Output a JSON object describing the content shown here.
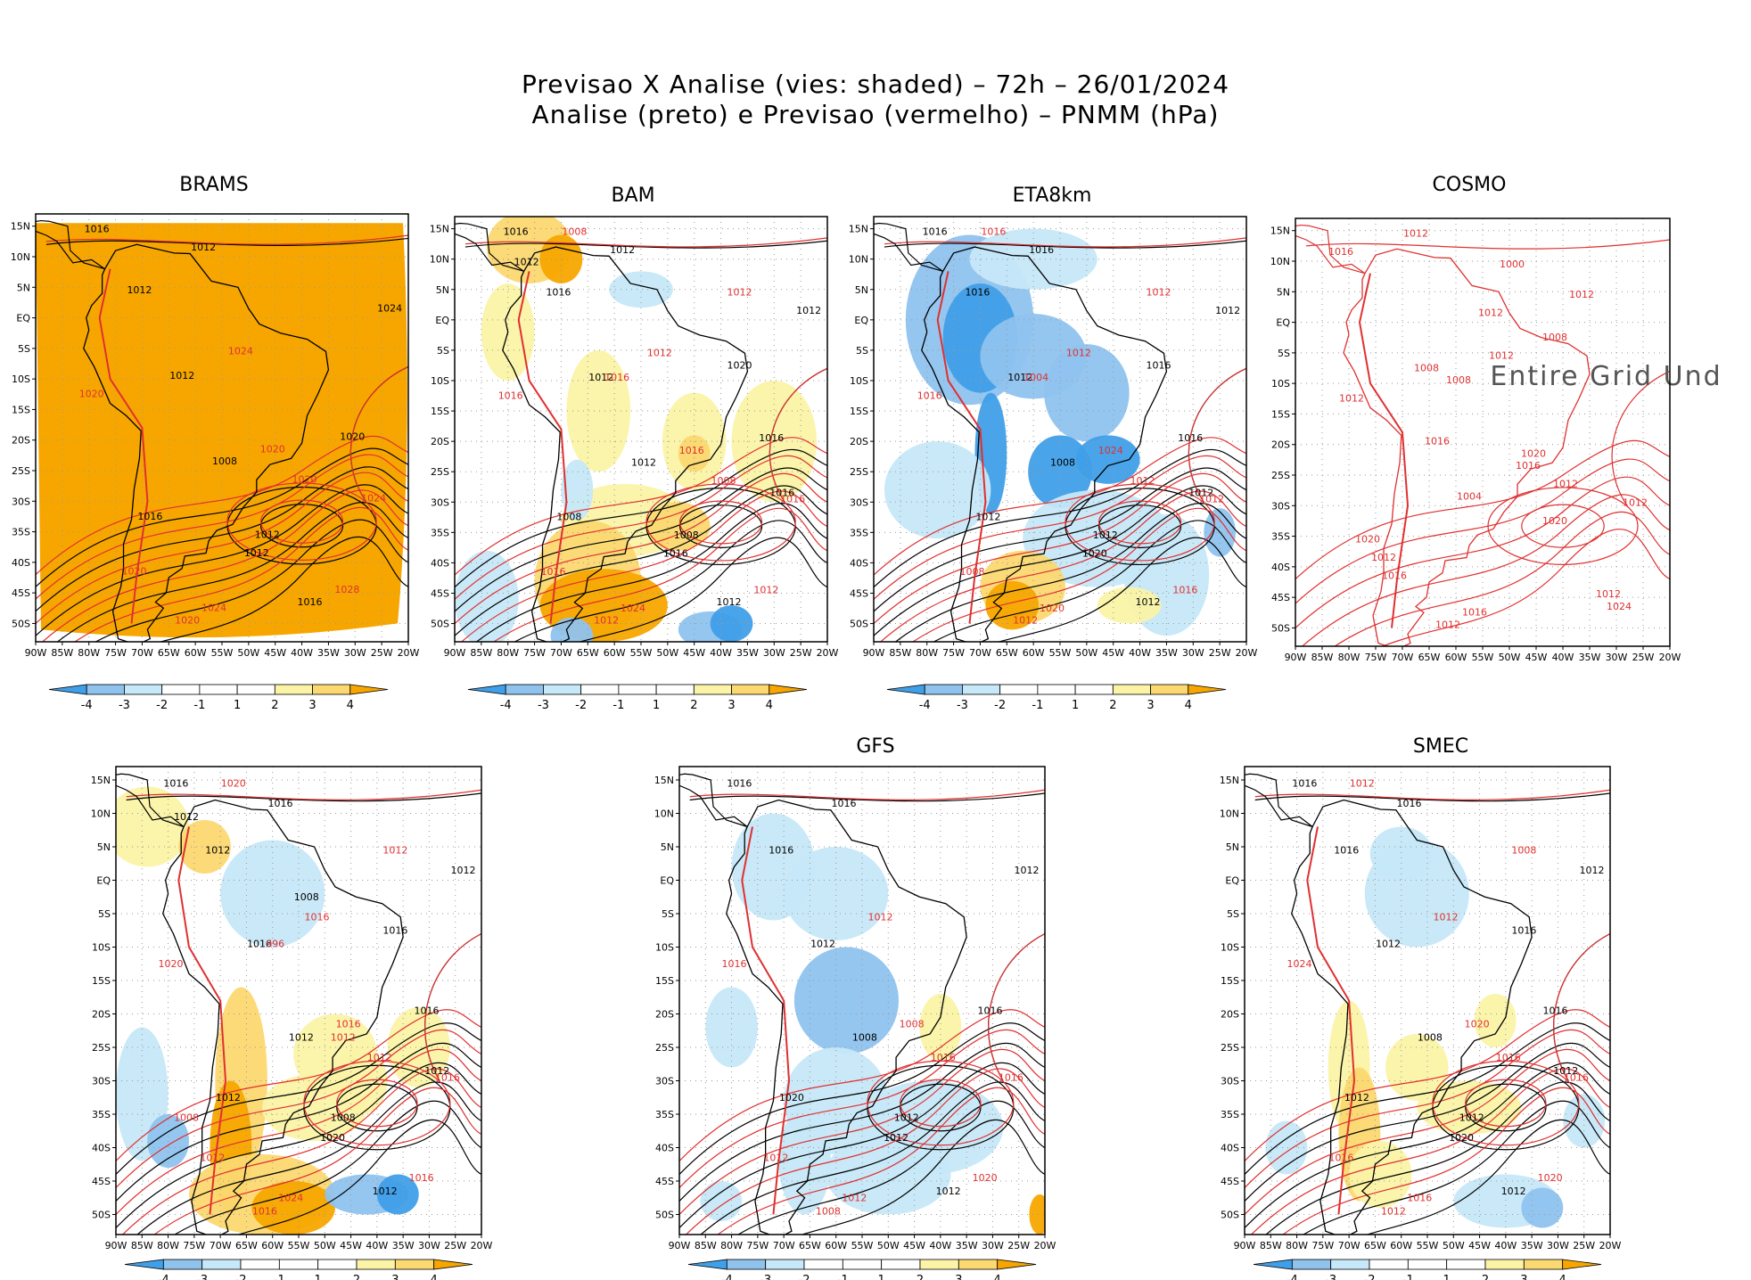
{
  "title_line1": "Previsao X Analise (vies: shaded) – 72h – 26/01/2024",
  "title_line2": "Analise (preto) e Previsao (vermelho) – PNMM (hPa)",
  "lon_labels": [
    "90W",
    "85W",
    "80W",
    "75W",
    "70W",
    "65W",
    "60W",
    "55W",
    "50W",
    "45W",
    "40W",
    "35W",
    "30W",
    "25W",
    "20W"
  ],
  "lat_labels": [
    "15N",
    "10N",
    "5N",
    "EQ",
    "5S",
    "10S",
    "15S",
    "20S",
    "25S",
    "30S",
    "35S",
    "40S",
    "45S",
    "50S"
  ],
  "colorbar_labels": [
    "-4",
    "-3",
    "-2",
    "-1",
    "1",
    "2",
    "3",
    "4"
  ],
  "colors": {
    "bias_neg4": "#3f9fe8",
    "bias_neg3": "#8fc3ee",
    "bias_neg2": "#c6e8f8",
    "bias_neg1": "#ffffff",
    "bias_pos1": "#ffffff",
    "bias_pos2": "#fbf3a6",
    "bias_pos3": "#fbd870",
    "bias_pos4": "#f7a600",
    "analysis_contour": "#000000",
    "forecast_contour": "#e03030"
  },
  "no_data_text": "Entire Grid Und",
  "chart_data": [
    {
      "type": "heatmap",
      "name": "BRAMS",
      "title": "BRAMS",
      "xlim": [
        -90,
        -20
      ],
      "ylim": [
        -53,
        17
      ],
      "dominant_bias": 4,
      "analise_labels": [
        "1016",
        "1012",
        "1012",
        "1008",
        "1012",
        "1016",
        "1020",
        "1024",
        "1016",
        "1012",
        "1012"
      ],
      "previsao_labels": [
        "1024",
        "1020",
        "1020",
        "1024",
        "1020",
        "1028",
        "1020",
        "1024",
        "1020"
      ]
    },
    {
      "type": "heatmap",
      "name": "BAM",
      "title": "BAM",
      "xlim": [
        -90,
        -20
      ],
      "ylim": [
        -53,
        17
      ],
      "analise_labels": [
        "1016",
        "1016",
        "1012",
        "1012",
        "1008",
        "1012",
        "1016",
        "1012",
        "1008",
        "1012",
        "1016",
        "1020",
        "1016",
        "1012"
      ],
      "previsao_labels": [
        "1016",
        "1016",
        "1012",
        "1012",
        "1008",
        "1012",
        "1016",
        "1024",
        "1016",
        "1008",
        "1012",
        "1016"
      ]
    },
    {
      "type": "heatmap",
      "name": "ETA8km",
      "title": "ETA8km",
      "xlim": [
        -90,
        -20
      ],
      "ylim": [
        -53,
        17
      ],
      "analise_labels": [
        "1016",
        "1016",
        "1012",
        "1008",
        "1012",
        "1012",
        "1016",
        "1012",
        "1012",
        "1016",
        "1020",
        "1016",
        "1012"
      ],
      "previsao_labels": [
        "1012",
        "1008",
        "1012",
        "1012",
        "1012",
        "1016",
        "1016",
        "1020",
        "1024",
        "1016",
        "1012",
        "1004"
      ]
    },
    {
      "type": "heatmap",
      "name": "COSMO",
      "title": "COSMO",
      "xlim": [
        -90,
        -20
      ],
      "ylim": [
        -53,
        17
      ],
      "analise_labels": [],
      "previsao_labels": [
        "1012",
        "1016",
        "1012",
        "1012",
        "1012",
        "1012",
        "1012",
        "1016",
        "1020",
        "1012",
        "1012",
        "1008",
        "1016",
        "1020",
        "1024",
        "1016",
        "1012",
        "1020",
        "1016",
        "1012",
        "1008",
        "1004",
        "1000",
        "1008"
      ]
    },
    {
      "type": "heatmap",
      "name": "",
      "title": "",
      "xlim": [
        -90,
        -20
      ],
      "ylim": [
        -53,
        17
      ],
      "analise_labels": [
        "1016",
        "1012",
        "1016",
        "1012",
        "1008",
        "1012",
        "1016",
        "1012",
        "1012",
        "1016",
        "1020",
        "1016",
        "1012",
        "1012",
        "1008"
      ],
      "previsao_labels": [
        "1016",
        "1012",
        "1016",
        "1016",
        "1012",
        "1016",
        "1020",
        "1024",
        "1016",
        "1020",
        "1012",
        "996",
        "1012",
        "1008"
      ]
    },
    {
      "type": "heatmap",
      "name": "GFS",
      "title": "GFS",
      "xlim": [
        -90,
        -20
      ],
      "ylim": [
        -53,
        17
      ],
      "analise_labels": [
        "1016",
        "1016",
        "1012",
        "1008",
        "1012",
        "1012",
        "1016",
        "1012",
        "1020",
        "1016",
        "1012"
      ],
      "previsao_labels": [
        "1016",
        "1012",
        "1008",
        "1012",
        "1016",
        "1020",
        "1016",
        "1012",
        "1008"
      ]
    },
    {
      "type": "heatmap",
      "name": "SMEC",
      "title": "SMEC",
      "xlim": [
        -90,
        -20
      ],
      "ylim": [
        -53,
        17
      ],
      "analise_labels": [
        "1016",
        "1016",
        "1012",
        "1008",
        "1012",
        "1012",
        "1016",
        "1012",
        "1012",
        "1016",
        "1020",
        "1016",
        "1012"
      ],
      "previsao_labels": [
        "1016",
        "1016",
        "1012",
        "1012",
        "1016",
        "1020",
        "1024",
        "1016",
        "1020",
        "1012",
        "1008"
      ]
    }
  ]
}
